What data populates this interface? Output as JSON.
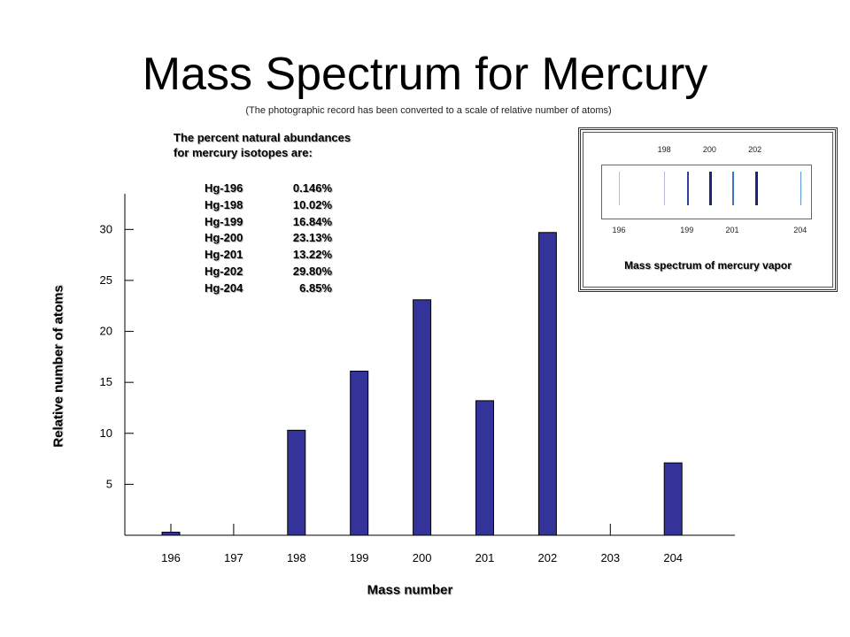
{
  "page": {
    "title": "Mass Spectrum for Mercury",
    "subtitle": "(The  photographic record has been converted to a scale of relative number of atoms)"
  },
  "abundances": {
    "heading_line1": "The percent natural abundances",
    "heading_line2": "for mercury isotopes are:",
    "rows": [
      {
        "isotope": "Hg-196",
        "percent": "0.146%"
      },
      {
        "isotope": "Hg-198",
        "percent": "10.02%"
      },
      {
        "isotope": "Hg-199",
        "percent": "16.84%"
      },
      {
        "isotope": "Hg-200",
        "percent": "23.13%"
      },
      {
        "isotope": "Hg-201",
        "percent": "13.22%"
      },
      {
        "isotope": "Hg-202",
        "percent": "29.80%"
      },
      {
        "isotope": "Hg-204",
        "percent": "6.85%"
      }
    ]
  },
  "chart_data": {
    "type": "bar",
    "title": "Mass Spectrum for Mercury",
    "xlabel": "Mass number",
    "ylabel": "Relative number of atoms",
    "categories": [
      "196",
      "197",
      "198",
      "199",
      "200",
      "201",
      "202",
      "203",
      "204"
    ],
    "values": [
      0.3,
      0,
      10.3,
      16.1,
      23.1,
      13.2,
      29.7,
      0,
      7.1
    ],
    "yticks": [
      5,
      10,
      15,
      20,
      25,
      30
    ],
    "ylim": [
      0,
      33.5
    ],
    "grid": false,
    "bar_color": "#333399"
  },
  "inset": {
    "top_numbers": [
      "198",
      "200",
      "202"
    ],
    "bottom_numbers": [
      "196",
      "199",
      "201",
      "204"
    ],
    "caption": "Mass spectrum of mercury vapor",
    "lines": [
      {
        "mass": 196,
        "color": "#a9c4e6"
      },
      {
        "mass": 198,
        "color": "#b4b8d2"
      },
      {
        "mass": 199,
        "color": "#2c43a2"
      },
      {
        "mass": 200,
        "color": "#1a2478"
      },
      {
        "mass": 201,
        "color": "#3a72c9"
      },
      {
        "mass": 202,
        "color": "#1a2478"
      },
      {
        "mass": 204,
        "color": "#5a94d6"
      }
    ]
  }
}
